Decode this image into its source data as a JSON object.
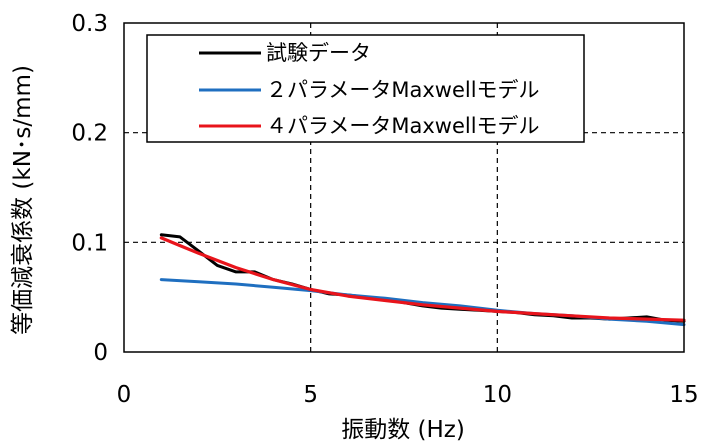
{
  "chart_data": {
    "type": "line",
    "xlabel": "振動数 (Hz)",
    "ylabel": "等価減衰係数 (kN･s/mm)",
    "xlim": [
      0,
      15
    ],
    "ylim": [
      0,
      0.3
    ],
    "x_ticks": [
      "0",
      "5",
      "10",
      "15"
    ],
    "y_ticks": [
      "0",
      "0.1",
      "0.2",
      "0.3"
    ],
    "grid": "dashed at major ticks",
    "legend_position": "top-left",
    "series": [
      {
        "name": "試験データ",
        "color": "#000000",
        "x": [
          1.0,
          1.5,
          2.0,
          2.5,
          3.0,
          3.5,
          4.0,
          4.5,
          5.0,
          5.5,
          6.0,
          6.5,
          7.0,
          7.5,
          8.0,
          8.5,
          9.0,
          9.5,
          10.0,
          10.5,
          11.0,
          11.5,
          12.0,
          12.5,
          13.0,
          13.5,
          14.0,
          14.5,
          15.0
        ],
        "y": [
          0.107,
          0.105,
          0.092,
          0.079,
          0.073,
          0.073,
          0.066,
          0.062,
          0.057,
          0.053,
          0.052,
          0.05,
          0.048,
          0.045,
          0.042,
          0.04,
          0.039,
          0.038,
          0.037,
          0.036,
          0.034,
          0.033,
          0.031,
          0.031,
          0.03,
          0.031,
          0.032,
          0.029,
          0.028
        ]
      },
      {
        "name": "２パラメータMaxwellモデル",
        "color": "#1f6fc0",
        "x": [
          1.0,
          2.0,
          3.0,
          4.0,
          5.0,
          6.0,
          7.0,
          8.0,
          9.0,
          10.0,
          11.0,
          12.0,
          13.0,
          14.0,
          15.0
        ],
        "y": [
          0.066,
          0.064,
          0.062,
          0.059,
          0.056,
          0.052,
          0.049,
          0.045,
          0.042,
          0.038,
          0.035,
          0.033,
          0.03,
          0.028,
          0.025
        ]
      },
      {
        "name": "４パラメータMaxwellモデル",
        "color": "#e8141b",
        "x": [
          1.0,
          1.5,
          2.0,
          3.0,
          4.0,
          5.0,
          6.0,
          7.0,
          8.0,
          9.0,
          10.0,
          11.0,
          12.0,
          13.0,
          14.0,
          15.0
        ],
        "y": [
          0.104,
          0.097,
          0.09,
          0.077,
          0.066,
          0.057,
          0.051,
          0.047,
          0.043,
          0.04,
          0.037,
          0.035,
          0.033,
          0.031,
          0.03,
          0.029
        ]
      }
    ]
  }
}
